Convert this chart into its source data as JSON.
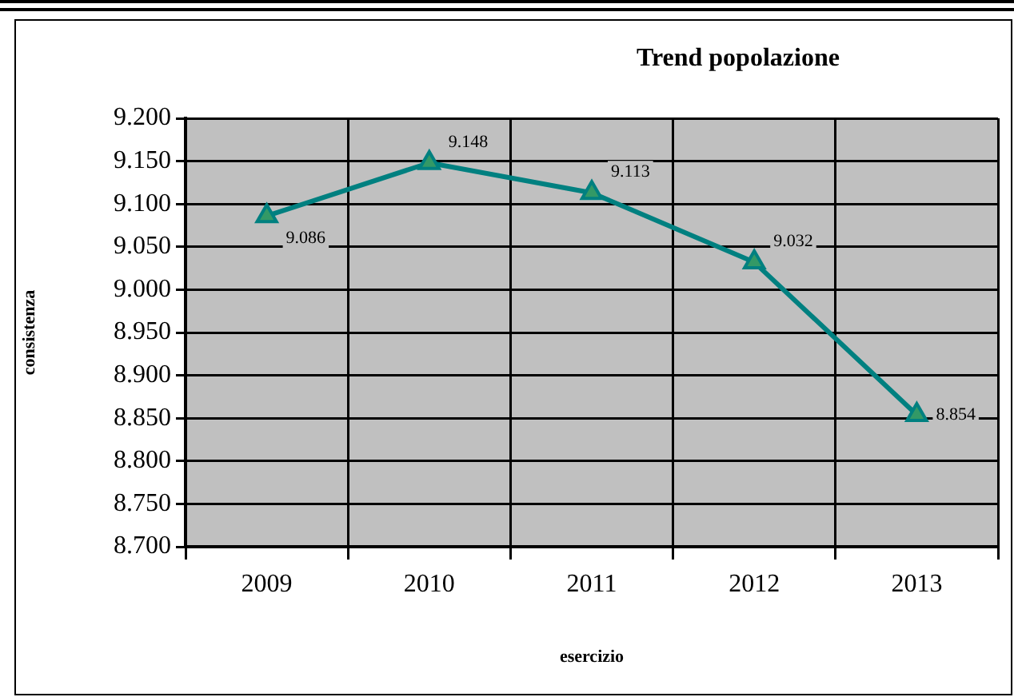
{
  "chart_data": {
    "type": "line",
    "title": "Trend popolazione",
    "xlabel": "esercizio",
    "ylabel": "consistenza",
    "categories": [
      "2009",
      "2010",
      "2011",
      "2012",
      "2013"
    ],
    "series": [
      {
        "color": "#008080",
        "values": [
          9.086,
          9.148,
          9.113,
          9.032,
          8.854
        ]
      }
    ],
    "ylim": [
      8.7,
      9.2
    ],
    "yticks": [
      {
        "value": 8.7,
        "label": "8.700"
      },
      {
        "value": 8.75,
        "label": "8.750"
      },
      {
        "value": 8.8,
        "label": "8.800"
      },
      {
        "value": 8.85,
        "label": "8.850"
      },
      {
        "value": 8.9,
        "label": "8.900"
      },
      {
        "value": 8.95,
        "label": "8.950"
      },
      {
        "value": 9.0,
        "label": "9.000"
      },
      {
        "value": 9.05,
        "label": "9.050"
      },
      {
        "value": 9.1,
        "label": "9.100"
      },
      {
        "value": 9.15,
        "label": "9.150"
      },
      {
        "value": 9.2,
        "label": "9.200"
      }
    ],
    "grid": true,
    "legend": false,
    "marker": "triangle",
    "line_style": "solid",
    "data_labels": true
  }
}
